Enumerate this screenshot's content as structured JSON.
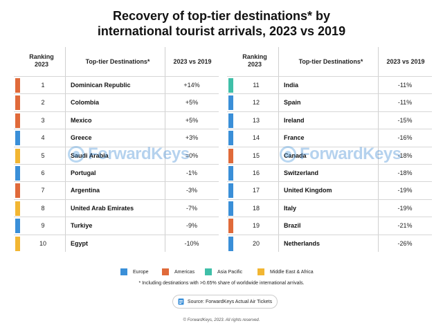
{
  "chart_data": {
    "type": "table",
    "title_line1": "Recovery of top-tier destinations* by",
    "title_line2": "international tourist arrivals, 2023 vs 2019",
    "columns": {
      "rank": "Ranking 2023",
      "rank_line1": "Ranking",
      "rank_line2": "2023",
      "destination": "Top-tier Destinations*",
      "change": "2023 vs 2019"
    },
    "regions": {
      "europe": {
        "label": "Europe",
        "color": "#3a8fd8"
      },
      "americas": {
        "label": "Americas",
        "color": "#e06a3a"
      },
      "asia_pacific": {
        "label": "Asia Pacific",
        "color": "#3fbfa8"
      },
      "mea": {
        "label": "Middle East & Africa",
        "color": "#f2b632"
      }
    },
    "rows": [
      {
        "rank": "1",
        "destination": "Dominican Republic",
        "change": "+14%",
        "value": 14,
        "region": "americas"
      },
      {
        "rank": "2",
        "destination": "Colombia",
        "change": "+5%",
        "value": 5,
        "region": "americas"
      },
      {
        "rank": "3",
        "destination": "Mexico",
        "change": "+5%",
        "value": 5,
        "region": "americas"
      },
      {
        "rank": "4",
        "destination": "Greece",
        "change": "+3%",
        "value": 3,
        "region": "europe"
      },
      {
        "rank": "5",
        "destination": "Saudi Arabia",
        "change": "=0%",
        "value": 0,
        "region": "mea"
      },
      {
        "rank": "6",
        "destination": "Portugal",
        "change": "-1%",
        "value": -1,
        "region": "europe"
      },
      {
        "rank": "7",
        "destination": "Argentina",
        "change": "-3%",
        "value": -3,
        "region": "americas"
      },
      {
        "rank": "8",
        "destination": "United Arab Emirates",
        "change": "-7%",
        "value": -7,
        "region": "mea"
      },
      {
        "rank": "9",
        "destination": "Turkiye",
        "change": "-9%",
        "value": -9,
        "region": "europe"
      },
      {
        "rank": "10",
        "destination": "Egypt",
        "change": "-10%",
        "value": -10,
        "region": "mea"
      },
      {
        "rank": "11",
        "destination": "India",
        "change": "-11%",
        "value": -11,
        "region": "asia_pacific"
      },
      {
        "rank": "12",
        "destination": "Spain",
        "change": "-11%",
        "value": -11,
        "region": "europe"
      },
      {
        "rank": "13",
        "destination": "Ireland",
        "change": "-15%",
        "value": -15,
        "region": "europe"
      },
      {
        "rank": "14",
        "destination": "France",
        "change": "-16%",
        "value": -16,
        "region": "europe"
      },
      {
        "rank": "15",
        "destination": "Canada",
        "change": "-18%",
        "value": -18,
        "region": "americas"
      },
      {
        "rank": "16",
        "destination": "Switzerland",
        "change": "-18%",
        "value": -18,
        "region": "europe"
      },
      {
        "rank": "17",
        "destination": "United Kingdom",
        "change": "-19%",
        "value": -19,
        "region": "europe"
      },
      {
        "rank": "18",
        "destination": "Italy",
        "change": "-19%",
        "value": -19,
        "region": "europe"
      },
      {
        "rank": "19",
        "destination": "Brazil",
        "change": "-21%",
        "value": -21,
        "region": "americas"
      },
      {
        "rank": "20",
        "destination": "Netherlands",
        "change": "-26%",
        "value": -26,
        "region": "europe"
      }
    ],
    "footnote": "* Including destinations with >0.65% share of worldwide international arrivals.",
    "source": "Source: ForwardKeys Actual Air Tickets",
    "copyright": "© ForwardKeys, 2023. All rights reserved.",
    "watermark": "ForwardKeys"
  }
}
